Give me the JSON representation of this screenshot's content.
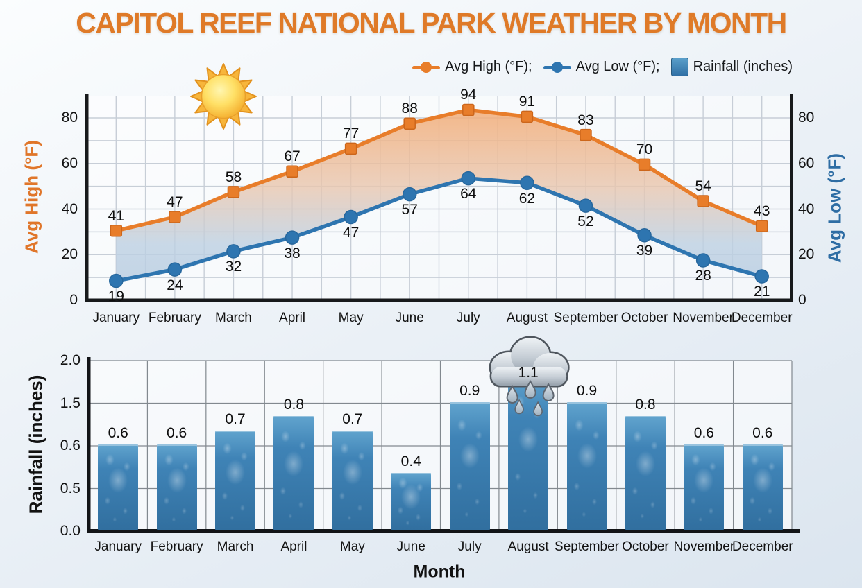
{
  "title": "CAPITOL REEF NATIONAL PARK WEATHER BY MONTH",
  "legend": {
    "items": [
      {
        "label": "Avg High (°F);",
        "type": "line-dot",
        "color": "#e87d2a"
      },
      {
        "label": "Avg Low (°F);",
        "type": "line-dot",
        "color": "#2e75b0"
      },
      {
        "label": "Rainfall (inches)",
        "type": "square",
        "color": "#3d84b8"
      }
    ]
  },
  "colors": {
    "high_line": "#e87d2a",
    "low_line": "#2e75b0",
    "bar_fill": "#3d84b8",
    "title_text": "#df7a28"
  },
  "decorations": {
    "icons": [
      "sun-icon",
      "rain-cloud-icon"
    ],
    "rain_cloud_month": "August"
  },
  "chart_data": [
    {
      "type": "line",
      "x": [
        "January",
        "February",
        "March",
        "April",
        "May",
        "June",
        "July",
        "August",
        "September",
        "October",
        "November",
        "December"
      ],
      "series": [
        {
          "name": "Avg High (°F)",
          "marker": "square",
          "color": "#e87d2a",
          "values": [
            41,
            47,
            58,
            67,
            77,
            88,
            94,
            91,
            83,
            70,
            54,
            43
          ]
        },
        {
          "name": "Avg Low (°F)",
          "marker": "circle",
          "color": "#2e75b0",
          "values": [
            19,
            24,
            32,
            38,
            47,
            57,
            64,
            62,
            52,
            39,
            28,
            21
          ]
        }
      ],
      "ylabel_left": "Avg High (°F)",
      "ylabel_right": "Avg Low (°F)",
      "yticks": [
        0,
        20,
        40,
        60,
        80
      ],
      "ylim": [
        0,
        90
      ],
      "grid": true,
      "area_fill_between_series": true
    },
    {
      "type": "bar",
      "categories": [
        "January",
        "February",
        "March",
        "April",
        "May",
        "June",
        "July",
        "August",
        "September",
        "October",
        "November",
        "December"
      ],
      "values": [
        0.6,
        0.6,
        0.7,
        0.8,
        0.7,
        0.4,
        0.9,
        1.1,
        0.9,
        0.8,
        0.6,
        0.6
      ],
      "ylabel": "Rainfall (inches)",
      "xlabel": "Month",
      "ytick_labels_bottom_to_top": [
        "0.0",
        "0.5",
        "0.6",
        "1.5",
        "2.0"
      ],
      "grid": true,
      "annotation": {
        "icon": "rain-cloud-icon",
        "month": "August",
        "value_label": "1.1"
      }
    }
  ]
}
